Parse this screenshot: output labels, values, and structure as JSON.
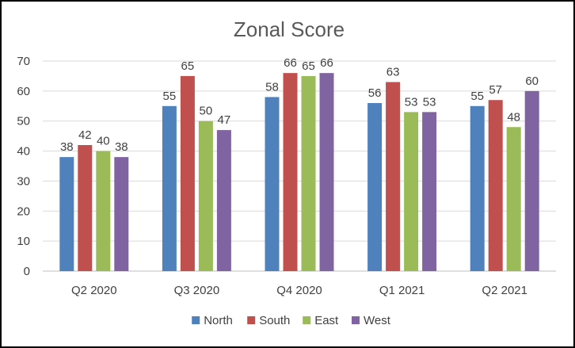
{
  "chart_data": {
    "type": "bar",
    "title": "Zonal Score",
    "xlabel": "",
    "ylabel": "",
    "ylim": [
      0,
      70
    ],
    "ytick_step": 10,
    "grid": true,
    "legend": "bottom",
    "categories": [
      "Q2 2020",
      "Q3 2020",
      "Q4 2020",
      "Q1 2021",
      "Q2 2021"
    ],
    "series": [
      {
        "name": "North",
        "color": "#4f81bd",
        "values": [
          38,
          55,
          58,
          56,
          55
        ]
      },
      {
        "name": "South",
        "color": "#c0504d",
        "values": [
          42,
          65,
          66,
          63,
          57
        ]
      },
      {
        "name": "East",
        "color": "#9bbb59",
        "values": [
          40,
          50,
          65,
          53,
          48
        ]
      },
      {
        "name": "West",
        "color": "#8064a2",
        "values": [
          38,
          47,
          66,
          53,
          60
        ]
      }
    ]
  }
}
